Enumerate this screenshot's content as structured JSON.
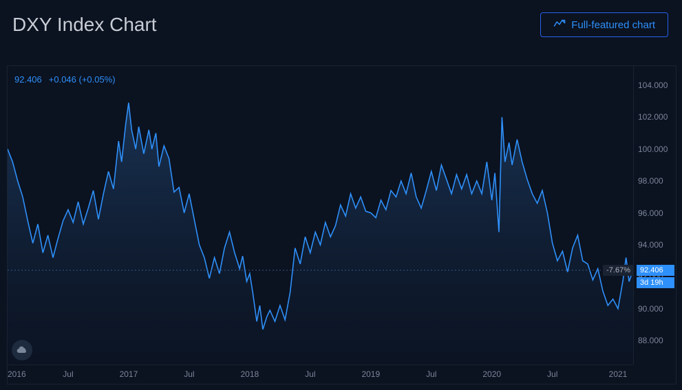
{
  "header": {
    "title": "DXY Index Chart",
    "full_featured_label": "Full-featured chart"
  },
  "stats": {
    "last": "92.406",
    "change": "+0.046",
    "change_pct": "(+0.05%)"
  },
  "right_badges": {
    "pct_move": "-7.67%",
    "price": "92.406",
    "countdown": "3d 19h"
  },
  "chart": {
    "type": "line-area",
    "background_color": "#0b1220",
    "plot_bg_color": "#0b1220",
    "line_color": "#2e90fa",
    "area_top_color": "#1d3a5f",
    "area_bottom_color": "#0d1a2e",
    "grid_color": "#1a2332",
    "ylabel_color": "#7a8699",
    "xlabel_color": "#7a8699",
    "title_color": "#c8ccd4",
    "stats_color": "#2e90fa",
    "line_width": 1.6,
    "ylim": [
      86.5,
      105.2
    ],
    "yticks": [
      88.0,
      90.0,
      92.0,
      94.0,
      96.0,
      98.0,
      100.0,
      102.0,
      104.0
    ],
    "ytick_labels": [
      "88.000",
      "90.000",
      "92.000",
      "94.000",
      "96.000",
      "98.000",
      "100.000",
      "102.000",
      "104.000"
    ],
    "xlim": [
      0,
      62
    ],
    "xticks": [
      0,
      6,
      12,
      18,
      24,
      30,
      36,
      42,
      48,
      54,
      60.5
    ],
    "xtick_labels": [
      "2016",
      "Jul",
      "2017",
      "Jul",
      "2018",
      "Jul",
      "2019",
      "Jul",
      "2020",
      "Jul",
      "2021"
    ],
    "current_price": 92.406,
    "data": [
      [
        0,
        100.0
      ],
      [
        0.5,
        99.2
      ],
      [
        1,
        98.0
      ],
      [
        1.5,
        97.0
      ],
      [
        2,
        95.5
      ],
      [
        2.5,
        94.1
      ],
      [
        3,
        95.3
      ],
      [
        3.5,
        93.5
      ],
      [
        4,
        94.6
      ],
      [
        4.5,
        93.2
      ],
      [
        5,
        94.4
      ],
      [
        5.5,
        95.5
      ],
      [
        6,
        96.2
      ],
      [
        6.5,
        95.4
      ],
      [
        7,
        96.7
      ],
      [
        7.5,
        95.3
      ],
      [
        8,
        96.3
      ],
      [
        8.5,
        97.4
      ],
      [
        9,
        95.6
      ],
      [
        9.5,
        97.2
      ],
      [
        10,
        98.6
      ],
      [
        10.5,
        97.5
      ],
      [
        11,
        100.5
      ],
      [
        11.3,
        99.2
      ],
      [
        11.7,
        101.5
      ],
      [
        12,
        102.9
      ],
      [
        12.3,
        101.2
      ],
      [
        12.7,
        100.0
      ],
      [
        13,
        101.4
      ],
      [
        13.5,
        99.7
      ],
      [
        14,
        101.2
      ],
      [
        14.3,
        100.0
      ],
      [
        14.7,
        101.0
      ],
      [
        15,
        98.9
      ],
      [
        15.5,
        100.2
      ],
      [
        16,
        99.4
      ],
      [
        16.5,
        97.3
      ],
      [
        17,
        97.6
      ],
      [
        17.5,
        96.0
      ],
      [
        18,
        97.2
      ],
      [
        18.5,
        95.6
      ],
      [
        19,
        94.0
      ],
      [
        19.5,
        93.2
      ],
      [
        20,
        91.9
      ],
      [
        20.5,
        93.2
      ],
      [
        21,
        92.2
      ],
      [
        21.5,
        93.8
      ],
      [
        22,
        94.8
      ],
      [
        22.5,
        93.5
      ],
      [
        23,
        92.5
      ],
      [
        23.3,
        93.3
      ],
      [
        23.7,
        91.7
      ],
      [
        24,
        92.2
      ],
      [
        24.3,
        91.0
      ],
      [
        24.7,
        89.2
      ],
      [
        25,
        90.2
      ],
      [
        25.3,
        88.7
      ],
      [
        25.7,
        89.5
      ],
      [
        26,
        89.9
      ],
      [
        26.5,
        89.2
      ],
      [
        27,
        90.2
      ],
      [
        27.5,
        89.3
      ],
      [
        28,
        91.0
      ],
      [
        28.5,
        93.8
      ],
      [
        29,
        92.8
      ],
      [
        29.5,
        94.5
      ],
      [
        30,
        93.5
      ],
      [
        30.5,
        94.8
      ],
      [
        31,
        94.0
      ],
      [
        31.5,
        95.4
      ],
      [
        32,
        94.5
      ],
      [
        32.5,
        95.2
      ],
      [
        33,
        96.5
      ],
      [
        33.5,
        95.8
      ],
      [
        34,
        97.2
      ],
      [
        34.5,
        96.3
      ],
      [
        35,
        97.0
      ],
      [
        35.5,
        96.1
      ],
      [
        36,
        96.0
      ],
      [
        36.5,
        95.7
      ],
      [
        37,
        96.8
      ],
      [
        37.5,
        96.2
      ],
      [
        38,
        97.4
      ],
      [
        38.5,
        97.0
      ],
      [
        39,
        98.0
      ],
      [
        39.5,
        97.2
      ],
      [
        40,
        98.5
      ],
      [
        40.5,
        97.0
      ],
      [
        41,
        96.3
      ],
      [
        41.5,
        97.4
      ],
      [
        42,
        98.6
      ],
      [
        42.5,
        97.4
      ],
      [
        43,
        99.0
      ],
      [
        43.5,
        98.1
      ],
      [
        44,
        97.2
      ],
      [
        44.5,
        98.4
      ],
      [
        45,
        97.5
      ],
      [
        45.5,
        98.4
      ],
      [
        46,
        97.2
      ],
      [
        46.5,
        98.0
      ],
      [
        47,
        97.2
      ],
      [
        47.5,
        99.2
      ],
      [
        48,
        96.8
      ],
      [
        48.3,
        98.5
      ],
      [
        48.7,
        94.8
      ],
      [
        49,
        102.0
      ],
      [
        49.3,
        99.2
      ],
      [
        49.7,
        100.4
      ],
      [
        50,
        99.0
      ],
      [
        50.5,
        100.6
      ],
      [
        51,
        99.2
      ],
      [
        51.5,
        98.1
      ],
      [
        52,
        97.2
      ],
      [
        52.5,
        96.6
      ],
      [
        53,
        97.4
      ],
      [
        53.5,
        96.0
      ],
      [
        54,
        94.1
      ],
      [
        54.5,
        93.0
      ],
      [
        55,
        93.6
      ],
      [
        55.5,
        92.3
      ],
      [
        56,
        93.8
      ],
      [
        56.5,
        94.6
      ],
      [
        57,
        93.0
      ],
      [
        57.5,
        92.8
      ],
      [
        58,
        91.8
      ],
      [
        58.5,
        92.5
      ],
      [
        59,
        91.1
      ],
      [
        59.5,
        90.2
      ],
      [
        60,
        90.6
      ],
      [
        60.5,
        90.0
      ],
      [
        61,
        91.8
      ],
      [
        61.3,
        93.2
      ],
      [
        61.6,
        91.7
      ],
      [
        62,
        92.406
      ]
    ]
  }
}
